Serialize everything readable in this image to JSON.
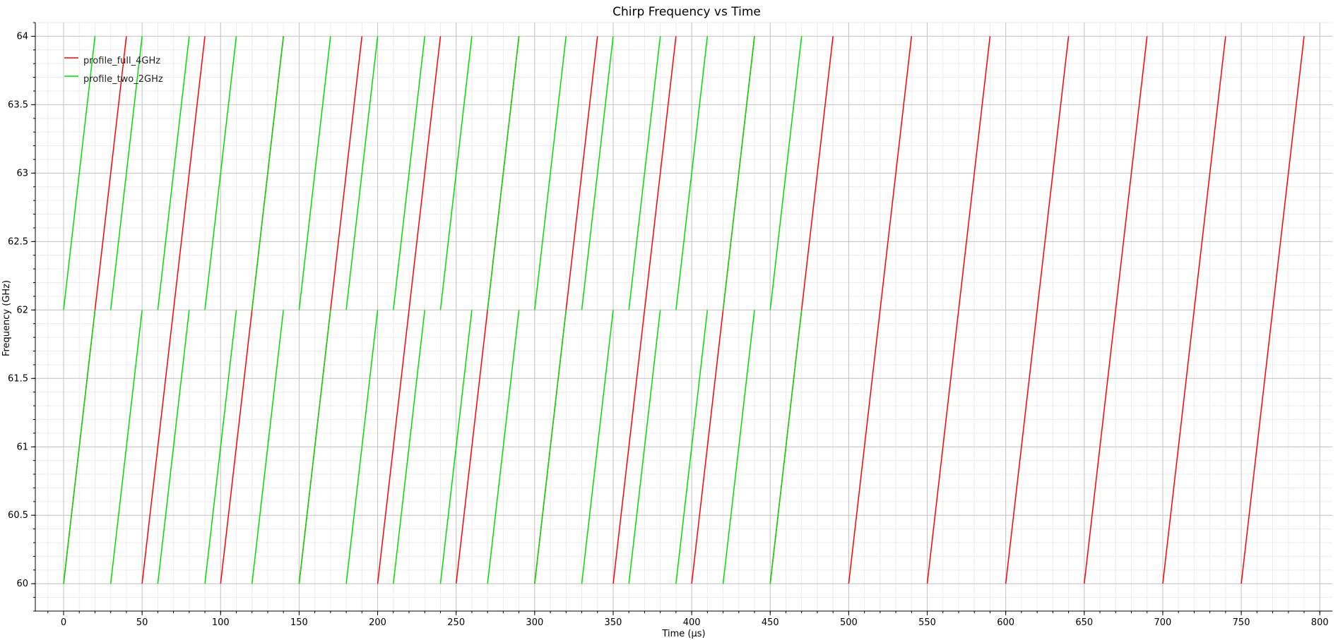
{
  "chart_data": {
    "type": "line",
    "title": "Chirp Frequency vs Time",
    "xlabel": "Time (µs)",
    "ylabel": "Frequency (GHz)",
    "xlim": [
      -18,
      808
    ],
    "ylim": [
      59.8,
      64.1
    ],
    "x_ticks": [
      0,
      50,
      100,
      150,
      200,
      250,
      300,
      350,
      400,
      450,
      500,
      550,
      600,
      650,
      700,
      750,
      800
    ],
    "y_ticks": [
      60,
      60.5,
      61,
      61.5,
      62,
      62.5,
      63,
      63.5,
      64
    ],
    "x_tick_labels": [
      "0",
      "50",
      "100",
      "150",
      "200",
      "250",
      "300",
      "350",
      "400",
      "450",
      "500",
      "550",
      "600",
      "650",
      "700",
      "750",
      "800"
    ],
    "y_tick_labels": [
      "60",
      "60.5",
      "61",
      "61.5",
      "62",
      "62.5",
      "63",
      "63.5",
      "64"
    ],
    "grid": true,
    "minor_grid": true,
    "legend_position": "top-left",
    "series": [
      {
        "name": "profile_full_4GHz",
        "color": "#ff0000",
        "chirps": [
          {
            "x": [
              0,
              40
            ],
            "y": [
              60,
              64
            ]
          },
          {
            "x": [
              50,
              90
            ],
            "y": [
              60,
              64
            ]
          },
          {
            "x": [
              100,
              140
            ],
            "y": [
              60,
              64
            ]
          },
          {
            "x": [
              150,
              190
            ],
            "y": [
              60,
              64
            ]
          },
          {
            "x": [
              200,
              240
            ],
            "y": [
              60,
              64
            ]
          },
          {
            "x": [
              250,
              290
            ],
            "y": [
              60,
              64
            ]
          },
          {
            "x": [
              300,
              340
            ],
            "y": [
              60,
              64
            ]
          },
          {
            "x": [
              350,
              390
            ],
            "y": [
              60,
              64
            ]
          },
          {
            "x": [
              400,
              440
            ],
            "y": [
              60,
              64
            ]
          },
          {
            "x": [
              450,
              490
            ],
            "y": [
              60,
              64
            ]
          },
          {
            "x": [
              500,
              540
            ],
            "y": [
              60,
              64
            ]
          },
          {
            "x": [
              550,
              590
            ],
            "y": [
              60,
              64
            ]
          },
          {
            "x": [
              600,
              640
            ],
            "y": [
              60,
              64
            ]
          },
          {
            "x": [
              650,
              690
            ],
            "y": [
              60,
              64
            ]
          },
          {
            "x": [
              700,
              740
            ],
            "y": [
              60,
              64
            ]
          },
          {
            "x": [
              750,
              790
            ],
            "y": [
              60,
              64
            ]
          }
        ]
      },
      {
        "name": "profile_two_2GHz",
        "color": "#00dd00",
        "chirps": [
          {
            "x": [
              0,
              20
            ],
            "y": [
              60,
              62
            ]
          },
          {
            "x": [
              0,
              20
            ],
            "y": [
              62,
              64
            ]
          },
          {
            "x": [
              30,
              50
            ],
            "y": [
              60,
              62
            ]
          },
          {
            "x": [
              30,
              50
            ],
            "y": [
              62,
              64
            ]
          },
          {
            "x": [
              60,
              80
            ],
            "y": [
              60,
              62
            ]
          },
          {
            "x": [
              60,
              80
            ],
            "y": [
              62,
              64
            ]
          },
          {
            "x": [
              90,
              110
            ],
            "y": [
              60,
              62
            ]
          },
          {
            "x": [
              90,
              110
            ],
            "y": [
              62,
              64
            ]
          },
          {
            "x": [
              120,
              140
            ],
            "y": [
              60,
              62
            ]
          },
          {
            "x": [
              120,
              140
            ],
            "y": [
              62,
              64
            ]
          },
          {
            "x": [
              150,
              170
            ],
            "y": [
              60,
              62
            ]
          },
          {
            "x": [
              150,
              170
            ],
            "y": [
              62,
              64
            ]
          },
          {
            "x": [
              180,
              200
            ],
            "y": [
              60,
              62
            ]
          },
          {
            "x": [
              180,
              200
            ],
            "y": [
              62,
              64
            ]
          },
          {
            "x": [
              210,
              230
            ],
            "y": [
              60,
              62
            ]
          },
          {
            "x": [
              210,
              230
            ],
            "y": [
              62,
              64
            ]
          },
          {
            "x": [
              240,
              260
            ],
            "y": [
              60,
              62
            ]
          },
          {
            "x": [
              240,
              260
            ],
            "y": [
              62,
              64
            ]
          },
          {
            "x": [
              270,
              290
            ],
            "y": [
              60,
              62
            ]
          },
          {
            "x": [
              270,
              290
            ],
            "y": [
              62,
              64
            ]
          },
          {
            "x": [
              300,
              320
            ],
            "y": [
              60,
              62
            ]
          },
          {
            "x": [
              300,
              320
            ],
            "y": [
              62,
              64
            ]
          },
          {
            "x": [
              330,
              350
            ],
            "y": [
              60,
              62
            ]
          },
          {
            "x": [
              330,
              350
            ],
            "y": [
              62,
              64
            ]
          },
          {
            "x": [
              360,
              380
            ],
            "y": [
              60,
              62
            ]
          },
          {
            "x": [
              360,
              380
            ],
            "y": [
              62,
              64
            ]
          },
          {
            "x": [
              390,
              410
            ],
            "y": [
              60,
              62
            ]
          },
          {
            "x": [
              390,
              410
            ],
            "y": [
              62,
              64
            ]
          },
          {
            "x": [
              420,
              440
            ],
            "y": [
              60,
              62
            ]
          },
          {
            "x": [
              420,
              440
            ],
            "y": [
              62,
              64
            ]
          },
          {
            "x": [
              450,
              470
            ],
            "y": [
              60,
              62
            ]
          },
          {
            "x": [
              450,
              470
            ],
            "y": [
              62,
              64
            ]
          }
        ]
      }
    ]
  }
}
